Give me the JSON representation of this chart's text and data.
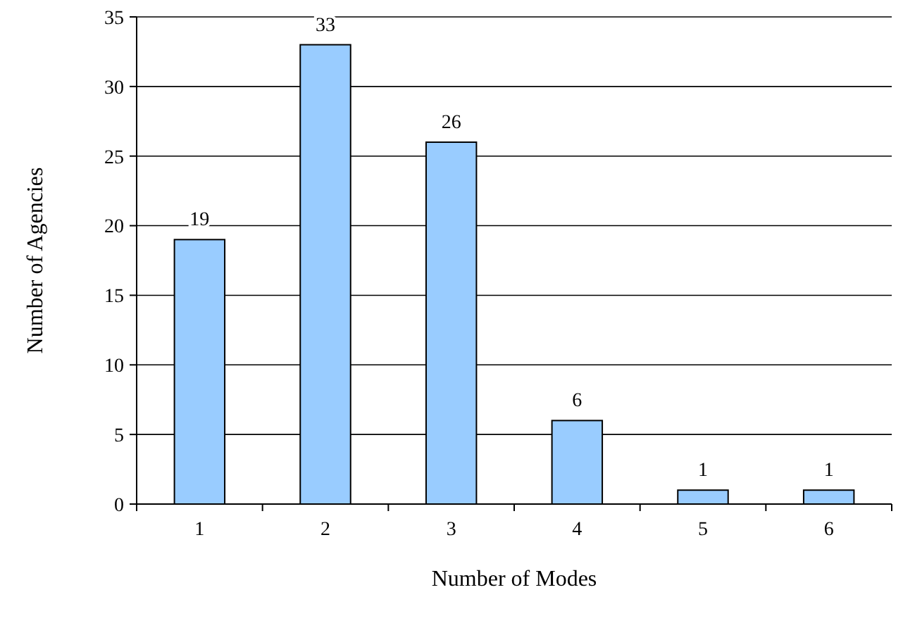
{
  "chart_data": {
    "type": "bar",
    "xlabel": "Number of Modes",
    "ylabel": "Number of Agencies",
    "categories": [
      "1",
      "2",
      "3",
      "4",
      "5",
      "6"
    ],
    "values": [
      19,
      33,
      26,
      6,
      1,
      1
    ],
    "color": "#99ccff",
    "ylim": [
      0,
      35
    ],
    "yticks": [
      0,
      5,
      10,
      15,
      20,
      25,
      30,
      35
    ],
    "grid": "y",
    "data_labels": true
  }
}
